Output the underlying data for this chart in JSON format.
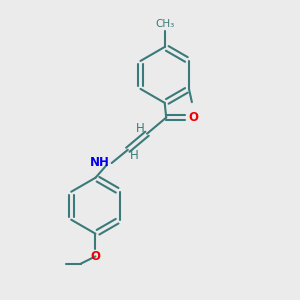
{
  "background_color": "#ebebeb",
  "bond_color": "#3a7a7a",
  "bond_width": 1.5,
  "N_color": "#0000ee",
  "O_color": "#ee0000",
  "font_size": 8.5,
  "fig_size": [
    3.0,
    3.0
  ],
  "dpi": 100,
  "xlim": [
    0,
    10
  ],
  "ylim": [
    0,
    10
  ]
}
